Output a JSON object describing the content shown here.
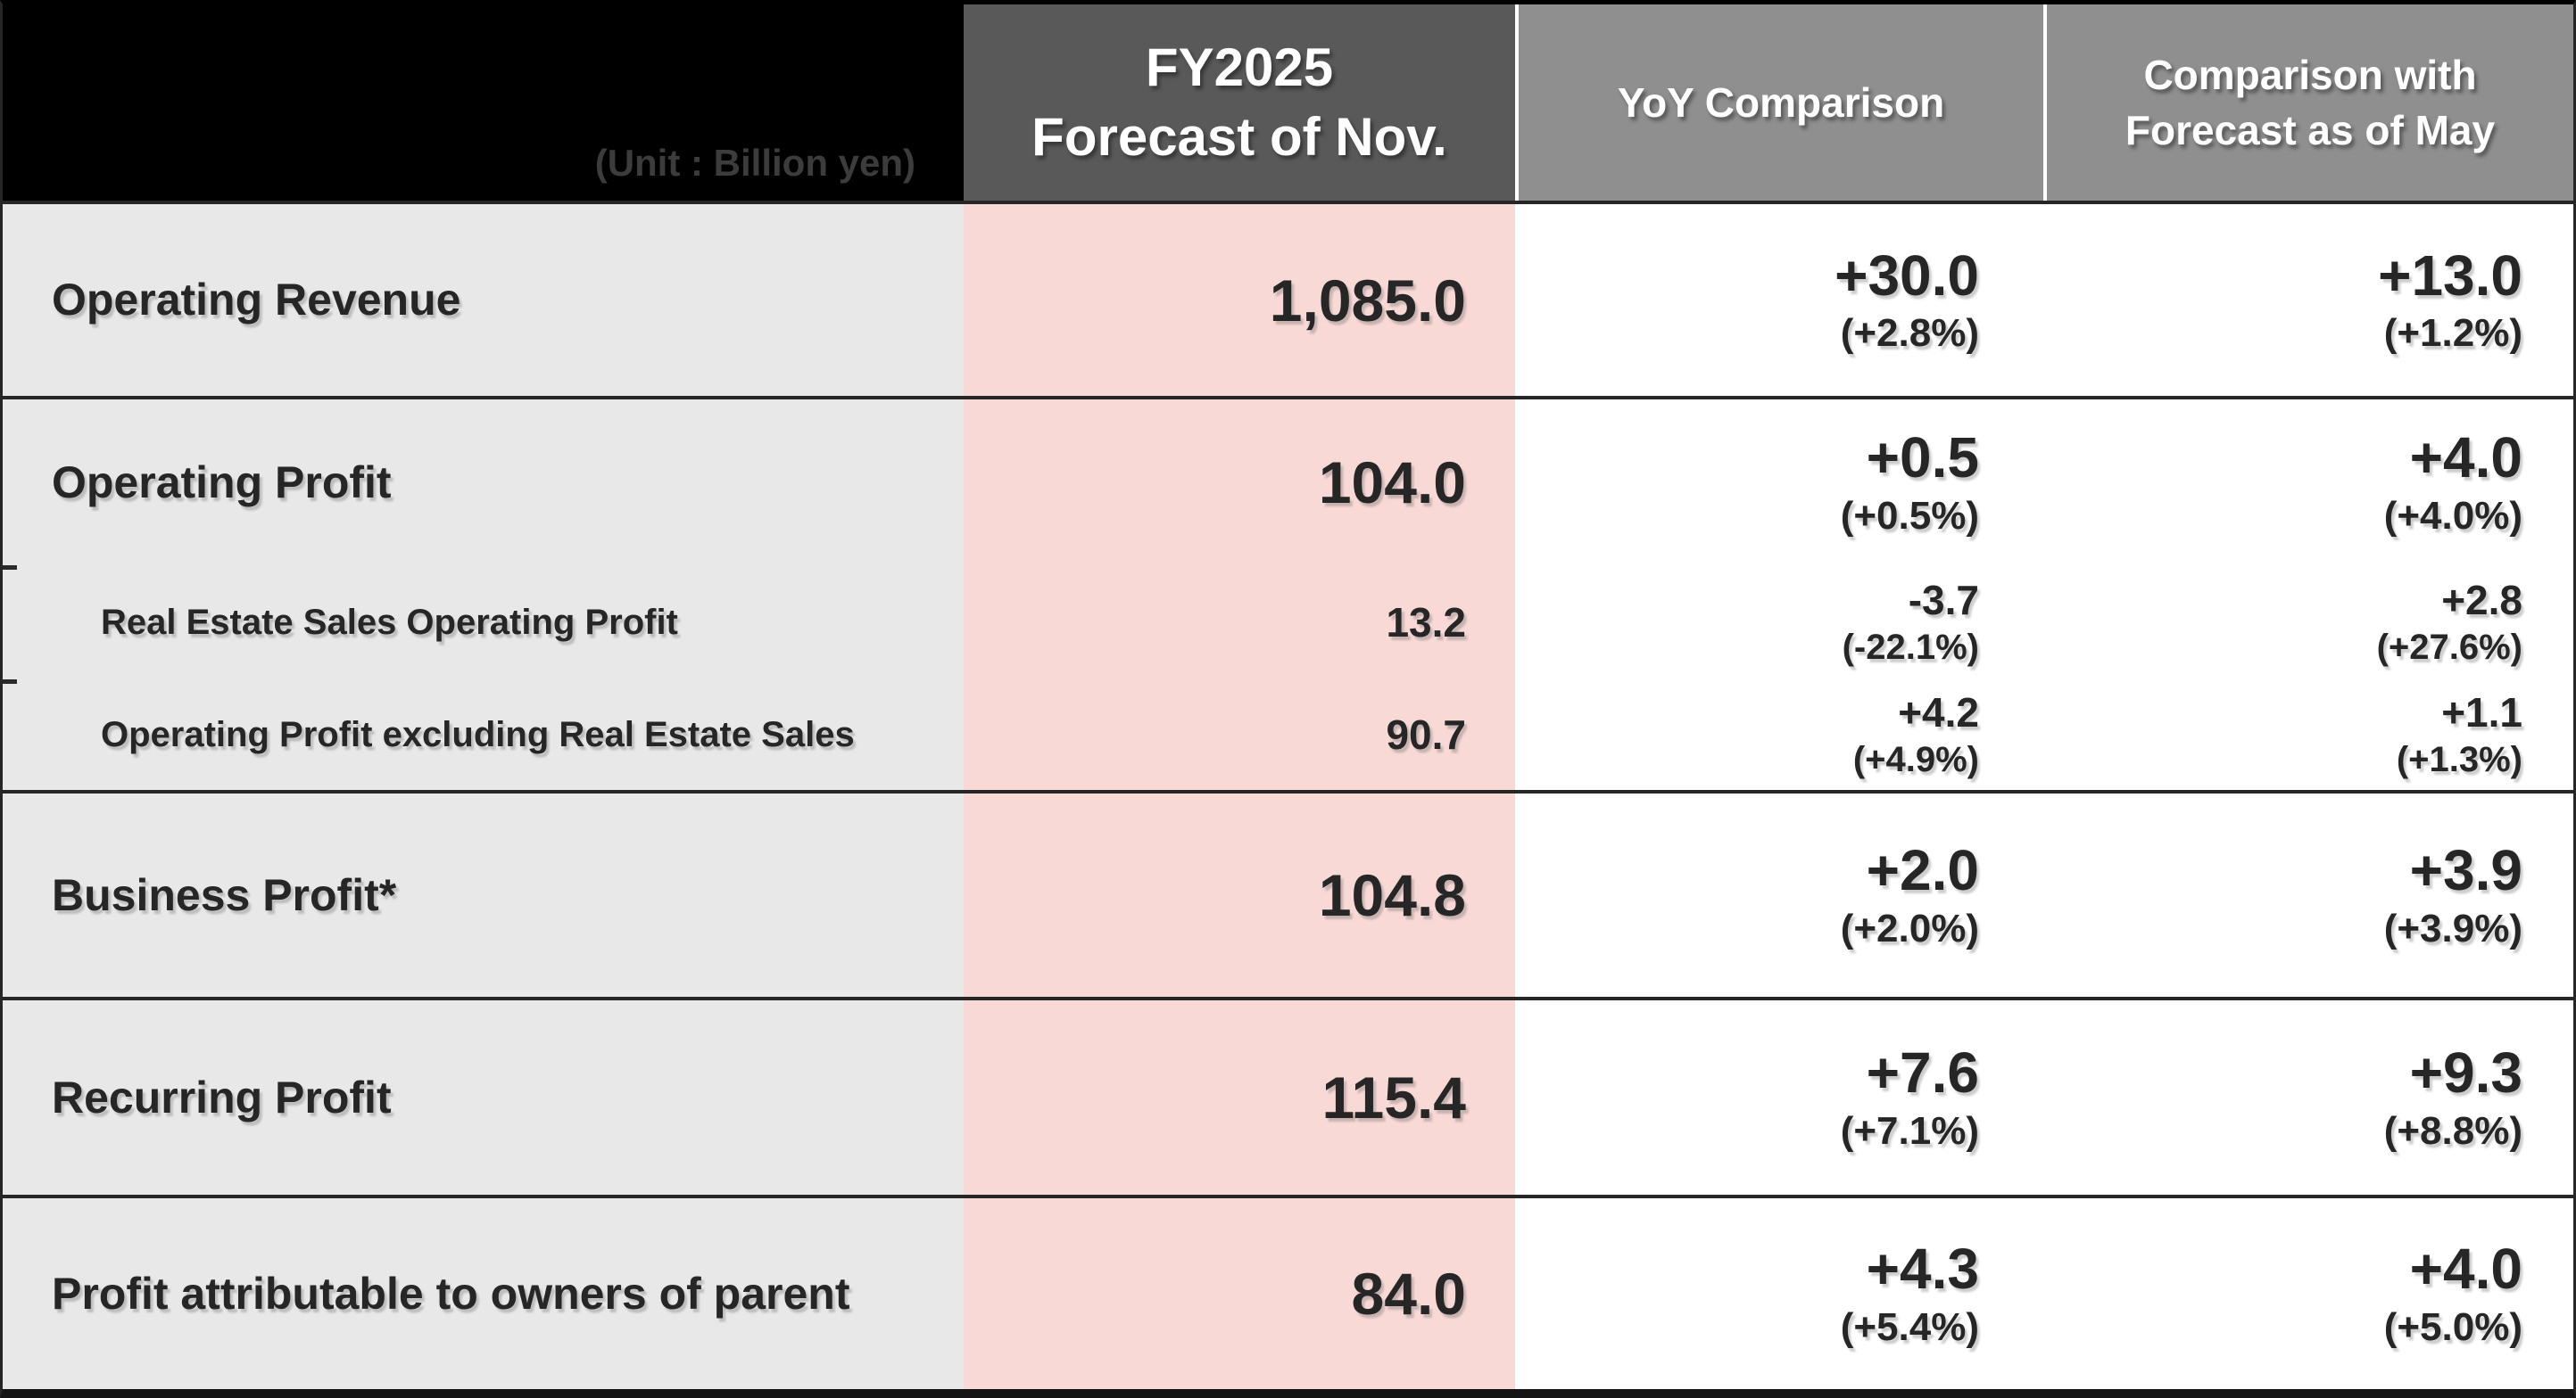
{
  "unit_note": "(Unit : Billion yen)",
  "header": {
    "value_col_line1": "FY2025",
    "value_col_line2": "Forecast of Nov.",
    "yoy_col": "YoY Comparison",
    "may_col_line1": "Comparison with",
    "may_col_line2": "Forecast as of May"
  },
  "colors": {
    "header_corner_bg": "#000000",
    "header_value_bg": "#595959",
    "header_comparison_bg": "#8F8F8F",
    "label_column_bg": "#E8E8E8",
    "value_column_bg": "#F8D9D6",
    "border": "#262626",
    "body_text": "#262626",
    "header_text": "#FFFFFF",
    "unit_text": "#3C3C3C"
  },
  "rows": [
    {
      "level": "main",
      "label": "Operating Revenue",
      "value": "1,085.0",
      "yoy": "+30.0",
      "yoy_pct": "(+2.8%)",
      "may": "+13.0",
      "may_pct": "(+1.2%)"
    },
    {
      "level": "main",
      "label": "Operating Profit",
      "value": "104.0",
      "yoy": "+0.5",
      "yoy_pct": "(+0.5%)",
      "may": "+4.0",
      "may_pct": "(+4.0%)"
    },
    {
      "level": "sub",
      "label": "Real Estate Sales Operating Profit",
      "value": "13.2",
      "yoy": "-3.7",
      "yoy_pct": "(-22.1%)",
      "may": "+2.8",
      "may_pct": "(+27.6%)"
    },
    {
      "level": "sub",
      "label": "Operating Profit excluding Real Estate Sales",
      "value": "90.7",
      "yoy": "+4.2",
      "yoy_pct": "(+4.9%)",
      "may": "+1.1",
      "may_pct": "(+1.3%)"
    },
    {
      "level": "main",
      "label": "Business Profit*",
      "value": "104.8",
      "yoy": "+2.0",
      "yoy_pct": "(+2.0%)",
      "may": "+3.9",
      "may_pct": "(+3.9%)"
    },
    {
      "level": "main",
      "label": "Recurring Profit",
      "value": "115.4",
      "yoy": "+7.6",
      "yoy_pct": "(+7.1%)",
      "may": "+9.3",
      "may_pct": "(+8.8%)"
    },
    {
      "level": "main",
      "label": "Profit attributable to owners of parent",
      "value": "84.0",
      "yoy": "+4.3",
      "yoy_pct": "(+5.4%)",
      "may": "+4.0",
      "may_pct": "(+5.0%)"
    }
  ]
}
